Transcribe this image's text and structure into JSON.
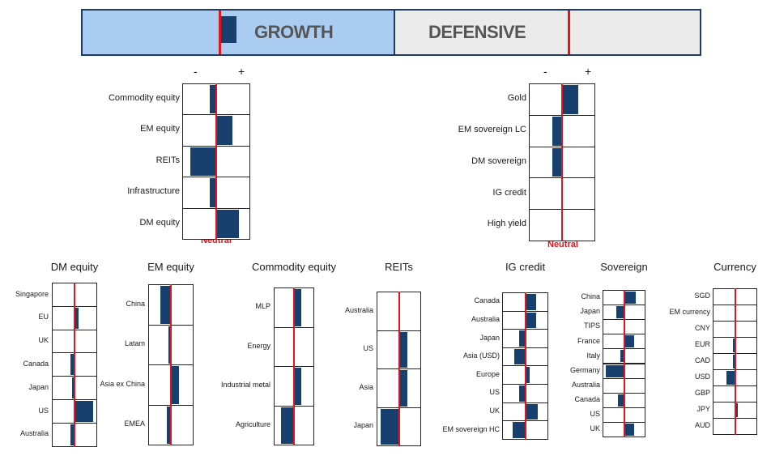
{
  "banner": {
    "growth_label": "GROWTH",
    "defensive_label": "DEFENSIVE",
    "growth_position": 1.0,
    "defensive_position": 0.0
  },
  "colors": {
    "bar": "#17406e",
    "neutral": "#e5141c",
    "growth_bg": "#a9ccf0",
    "defensive_bg": "#ebebeb"
  },
  "signs": {
    "minus": "-",
    "plus": "+"
  },
  "neutral_label": "Neutral",
  "chart_data": [
    {
      "type": "bar",
      "title": "GROWTH",
      "categories": [
        "Commodity equity",
        "EM equity",
        "REITs",
        "Infrastructure",
        "DM equity"
      ],
      "values": [
        -0.2,
        0.5,
        -0.8,
        -0.2,
        0.7
      ]
    },
    {
      "type": "bar",
      "title": "DEFENSIVE",
      "categories": [
        "Gold",
        "EM sovereign LC",
        "DM sovereign",
        "IG credit",
        "High yield"
      ],
      "values": [
        0.5,
        -0.3,
        -0.3,
        0.0,
        0.0
      ]
    },
    {
      "type": "bar",
      "title": "DM equity",
      "categories": [
        "Singapore",
        "EU",
        "UK",
        "Canada",
        "Japan",
        "US",
        "Australia"
      ],
      "values": [
        0.0,
        0.2,
        0.0,
        -0.2,
        -0.1,
        0.9,
        -0.2
      ]
    },
    {
      "type": "bar",
      "title": "EM equity",
      "categories": [
        "China",
        "Latam",
        "Asia ex China",
        "EMEA"
      ],
      "values": [
        -0.5,
        -0.1,
        0.4,
        -0.2
      ]
    },
    {
      "type": "bar",
      "title": "Commodity equity",
      "categories": [
        "MLP",
        "Energy",
        "Industrial metal",
        "Agriculture"
      ],
      "values": [
        0.4,
        0.0,
        0.4,
        -0.7
      ]
    },
    {
      "type": "bar",
      "title": "REITs",
      "categories": [
        "Australia",
        "US",
        "Asia",
        "Japan"
      ],
      "values": [
        0.0,
        0.4,
        0.4,
        -0.9
      ]
    },
    {
      "type": "bar",
      "title": "IG credit",
      "categories": [
        "Canada",
        "Australia",
        "Japan",
        "Asia (USD)",
        "Europe",
        "US",
        "UK",
        "EM sovereign HC"
      ],
      "values": [
        0.5,
        0.5,
        -0.3,
        -0.5,
        0.2,
        -0.3,
        0.6,
        -0.6
      ]
    },
    {
      "type": "bar",
      "title": "Sovereign",
      "categories": [
        "China",
        "Japan",
        "TIPS",
        "France",
        "Italy",
        "Germany",
        "Australia",
        "Canada",
        "US",
        "UK"
      ],
      "values": [
        0.6,
        -0.4,
        0.0,
        0.5,
        -0.2,
        -0.9,
        0.0,
        -0.3,
        0.0,
        0.5
      ]
    },
    {
      "type": "bar",
      "title": "Currency",
      "categories": [
        "SGD",
        "EM currency",
        "CNY",
        "EUR",
        "CAD",
        "USD",
        "GBP",
        "JPY",
        "AUD"
      ],
      "values": [
        0.0,
        0.0,
        0.0,
        -0.1,
        -0.1,
        -0.4,
        0.0,
        0.1,
        0.0
      ]
    }
  ]
}
